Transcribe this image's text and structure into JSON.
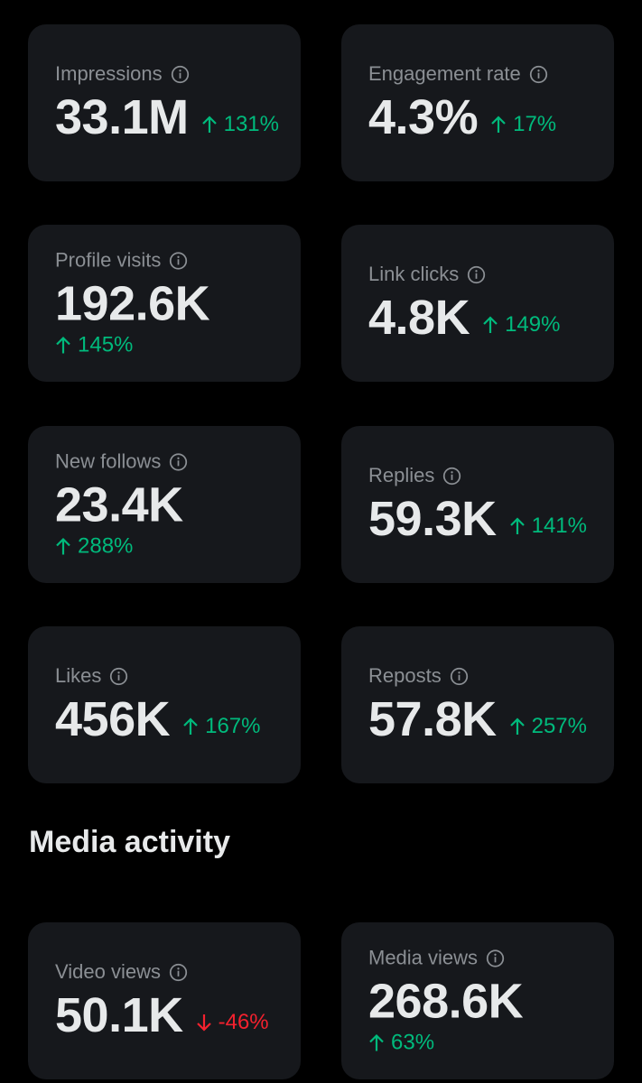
{
  "colors": {
    "background": "#000000",
    "card": "#16181c",
    "label": "#8b8f94",
    "value": "#e7e9ea",
    "positive": "#00ba7c",
    "negative": "#f4212e"
  },
  "metrics": [
    {
      "label": "Impressions",
      "value": "33.1M",
      "delta": "131%",
      "direction": "up",
      "icon": "info-icon"
    },
    {
      "label": "Engagement rate",
      "value": "4.3%",
      "delta": "17%",
      "direction": "up",
      "icon": "info-icon"
    },
    {
      "label": "Profile visits",
      "value": "192.6K",
      "delta": "145%",
      "direction": "up",
      "icon": "info-icon"
    },
    {
      "label": "Link clicks",
      "value": "4.8K",
      "delta": "149%",
      "direction": "up",
      "icon": "info-icon"
    },
    {
      "label": "New follows",
      "value": "23.4K",
      "delta": "288%",
      "direction": "up",
      "icon": "info-icon"
    },
    {
      "label": "Replies",
      "value": "59.3K",
      "delta": "141%",
      "direction": "up",
      "icon": "info-icon"
    },
    {
      "label": "Likes",
      "value": "456K",
      "delta": "167%",
      "direction": "up",
      "icon": "info-icon"
    },
    {
      "label": "Reposts",
      "value": "57.8K",
      "delta": "257%",
      "direction": "up",
      "icon": "info-icon"
    }
  ],
  "media_section": {
    "title": "Media activity",
    "metrics": [
      {
        "label": "Video views",
        "value": "50.1K",
        "delta": "-46%",
        "direction": "down",
        "icon": "info-icon"
      },
      {
        "label": "Media views",
        "value": "268.6K",
        "delta": "63%",
        "direction": "up",
        "icon": "info-icon"
      }
    ]
  }
}
